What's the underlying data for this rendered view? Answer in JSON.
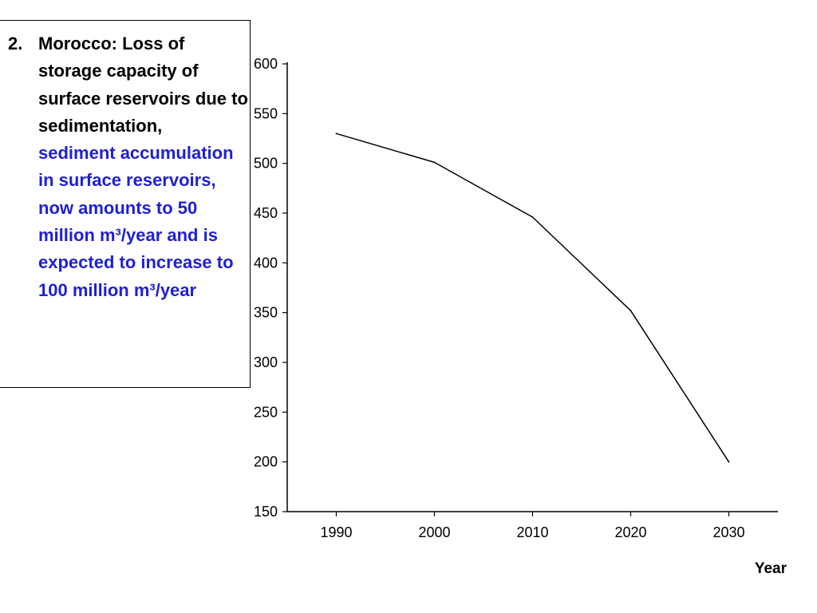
{
  "slide": {
    "item_number": "2.",
    "heading": "Morocco: Loss of storage capacity of surface reservoirs due to sedimentation,",
    "detail": "sediment accumulation in surface reservoirs, now amounts to 50 million m³/year and is expected to increase to 100 million m³/year",
    "detail_color": "#1f1fd6"
  },
  "chart_data": {
    "type": "line",
    "title": "",
    "xlabel": "Year",
    "ylabel": "",
    "xlim": [
      1985,
      2035
    ],
    "ylim": [
      150,
      600
    ],
    "x_ticks": [
      1990,
      2000,
      2010,
      2020,
      2030
    ],
    "y_ticks": [
      150,
      200,
      250,
      300,
      350,
      400,
      450,
      500,
      550,
      600
    ],
    "grid": false,
    "series": [
      {
        "x": [
          1990,
          2000,
          2010,
          2020,
          2030
        ],
        "y": [
          530,
          501,
          446,
          352,
          200
        ],
        "color": "#000000"
      }
    ]
  }
}
